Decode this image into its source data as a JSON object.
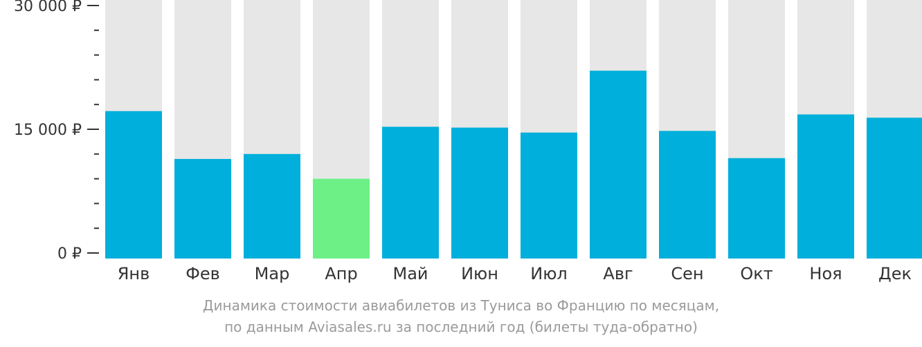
{
  "chart_data": {
    "type": "bar",
    "categories": [
      "Янв",
      "Фев",
      "Мар",
      "Апр",
      "Май",
      "Июн",
      "Июл",
      "Авг",
      "Сен",
      "Окт",
      "Ноя",
      "Дек"
    ],
    "values": [
      17200,
      11400,
      12000,
      9000,
      15300,
      15200,
      14600,
      22100,
      14800,
      11500,
      16800,
      16400
    ],
    "highlight_index": 3,
    "ylim": [
      0,
      30000
    ],
    "y_ticks": [
      {
        "value": 0,
        "label": "0 ₽"
      },
      {
        "value": 15000,
        "label": "15 000 ₽"
      },
      {
        "value": 30000,
        "label": "30 000 ₽"
      }
    ],
    "minor_tick_step": 3000,
    "colors": {
      "bar": "#00afdb",
      "bar_highlight": "#6df086",
      "background_bar": "#e7e7e7",
      "axis": "#333333"
    },
    "caption_lines": [
      "Динамика стоимости авиабилетов из Туниса во Францию по месяцам,",
      "по данным Aviasales.ru за последний год (билеты туда-обратно)"
    ]
  }
}
